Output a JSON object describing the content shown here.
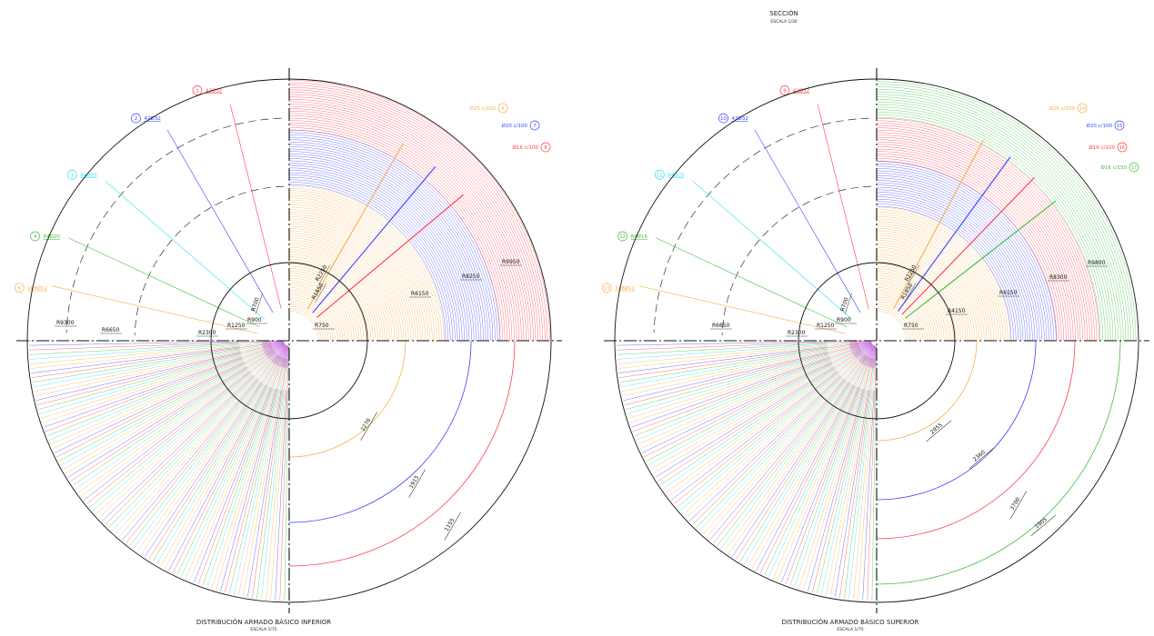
{
  "header": {
    "title": "SECCIÓN",
    "scale": "ESCALA 1/30"
  },
  "colors": {
    "orange": "#f5b04a",
    "blue": "#3b43ff",
    "red": "#ff3b4a",
    "cyan": "#2fe0ef",
    "green": "#3fbf3f",
    "purple": "#c060d8",
    "grey": "#b0b0b0",
    "black": "#111111"
  },
  "left": {
    "title": "DISTRIBUCIÓN ARMADO BÁSICO INFERIOR",
    "scale": "ESCALA 1/75",
    "markers": [
      {
        "num": "1",
        "label": "42Ø32",
        "color": "red"
      },
      {
        "num": "2",
        "label": "42Ø32",
        "color": "blue"
      },
      {
        "num": "3",
        "label": "84Ø25",
        "color": "cyan"
      },
      {
        "num": "4",
        "label": "84Ø20",
        "color": "green"
      },
      {
        "num": "5",
        "label": "168Ø12",
        "color": "orange"
      }
    ],
    "callouts": [
      {
        "num": "6",
        "label": "Ø25 c/100",
        "color": "orange"
      },
      {
        "num": "7",
        "label": "Ø20 c/100",
        "color": "blue"
      },
      {
        "num": "8",
        "label": "Ø16 c/100",
        "color": "red"
      }
    ],
    "radii": [
      "R9300",
      "R6650",
      "R2300",
      "R1250",
      "R900",
      "R700",
      "R1850",
      "R2250",
      "R750",
      "R6150",
      "R8250",
      "R9950"
    ],
    "spans": [
      "2270",
      "1915",
      "1155"
    ]
  },
  "right": {
    "title": "DISTRIBUCIÓN ARMADO BÁSICO SUPERIOR",
    "scale": "ESCALA 1/75",
    "markers": [
      {
        "num": "9",
        "label": "42Ø32",
        "color": "red"
      },
      {
        "num": "10",
        "label": "42Ø32",
        "color": "blue"
      },
      {
        "num": "11",
        "label": "84Ø25",
        "color": "cyan"
      },
      {
        "num": "12",
        "label": "84Ø16",
        "color": "green"
      },
      {
        "num": "13",
        "label": "168Ø12",
        "color": "orange"
      }
    ],
    "callouts": [
      {
        "num": "14",
        "label": "Ø25 c/100",
        "color": "orange"
      },
      {
        "num": "15",
        "label": "Ø20 c/100",
        "color": "blue"
      },
      {
        "num": "16",
        "label": "Ø16 c/100",
        "color": "red"
      },
      {
        "num": "17",
        "label": "Ø16 c/150",
        "color": "green"
      }
    ],
    "radii": [
      "R6650",
      "R2300",
      "R1250",
      "R900",
      "R700",
      "R1850",
      "R2250",
      "R750",
      "R4150",
      "R6150",
      "R8300",
      "R9800"
    ],
    "spans": [
      "2955",
      "2360",
      "3700",
      "1905"
    ]
  }
}
